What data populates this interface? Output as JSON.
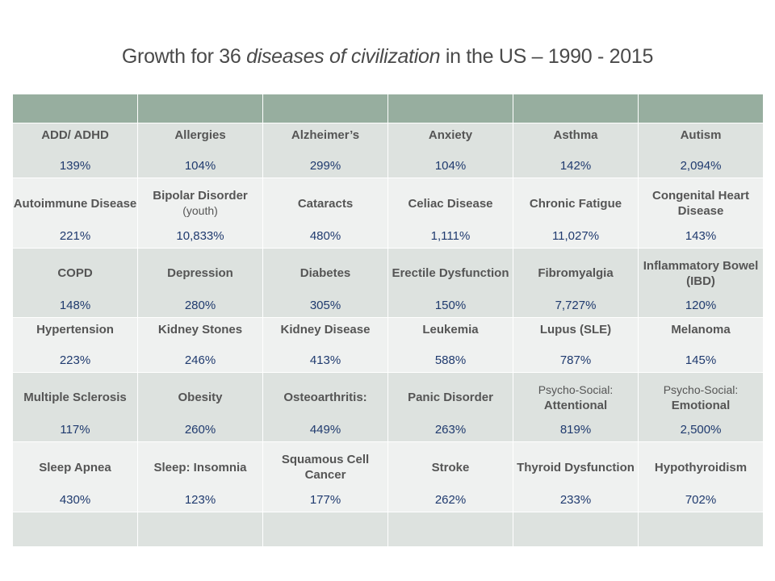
{
  "title": {
    "prefix": "Growth for 36 ",
    "italic": "diseases of civilization",
    "suffix": " in the US – 1990 - 2015"
  },
  "rows": [
    [
      {
        "name": "ADD/ ADHD",
        "pct": "139%"
      },
      {
        "name": "Allergies",
        "pct": "104%"
      },
      {
        "name": "Alzheimer’s",
        "pct": "299%"
      },
      {
        "name": "Anxiety",
        "pct": "104%"
      },
      {
        "name": "Asthma",
        "pct": "142%"
      },
      {
        "name": "Autism",
        "pct": "2,094%"
      }
    ],
    [
      {
        "name": "Autoimmune Disease",
        "pct": "221%"
      },
      {
        "name": "Bipolar Disorder",
        "sub": "(youth)",
        "pct": "10,833%"
      },
      {
        "name": "Cataracts",
        "pct": "480%"
      },
      {
        "name": "Celiac Disease",
        "pct": "1,111%"
      },
      {
        "name": "Chronic Fatigue",
        "pct": "11,027%"
      },
      {
        "name": "Congenital Heart Disease",
        "pct": "143%"
      }
    ],
    [
      {
        "name": "COPD",
        "pct": "148%"
      },
      {
        "name": "Depression",
        "pct": "280%"
      },
      {
        "name": "Diabetes",
        "pct": "305%"
      },
      {
        "name": "Erectile Dysfunction",
        "pct": "150%"
      },
      {
        "name": "Fibromyalgia",
        "pct": "7,727%"
      },
      {
        "name": "Inflammatory Bowel (IBD)",
        "pct": "120%"
      }
    ],
    [
      {
        "name": "Hypertension",
        "pct": "223%"
      },
      {
        "name": "Kidney Stones",
        "pct": "246%"
      },
      {
        "name": "Kidney Disease",
        "pct": "413%"
      },
      {
        "name": "Leukemia",
        "pct": "588%"
      },
      {
        "name": "Lupus (SLE)",
        "pct": "787%"
      },
      {
        "name": "Melanoma",
        "pct": "145%"
      }
    ],
    [
      {
        "name": "Multiple Sclerosis",
        "pct": "117%"
      },
      {
        "name": "Obesity",
        "pct": "260%"
      },
      {
        "name": "Osteoarthritis:",
        "pct": "449%"
      },
      {
        "name": "Panic Disorder",
        "pct": "263%"
      },
      {
        "pre": "Psycho-Social:",
        "name": "Attentional",
        "pct": "819%"
      },
      {
        "pre": "Psycho-Social:",
        "name": "Emotional",
        "pct": "2,500%"
      }
    ],
    [
      {
        "name": "Sleep Apnea",
        "pct": "430%"
      },
      {
        "name": "Sleep: Insomnia",
        "pct": "123%"
      },
      {
        "name": "Squamous Cell Cancer",
        "pct": "177%"
      },
      {
        "name": "Stroke",
        "pct": "262%"
      },
      {
        "name": "Thyroid Dysfunction",
        "pct": "233%"
      },
      {
        "name": "Hypothyroidism",
        "pct": "702%"
      }
    ]
  ],
  "colors": {
    "header": "#97ae9f",
    "row_odd": "#dde2df",
    "row_even": "#eff1f0",
    "value": "#1f3a6e",
    "label": "#555555"
  }
}
